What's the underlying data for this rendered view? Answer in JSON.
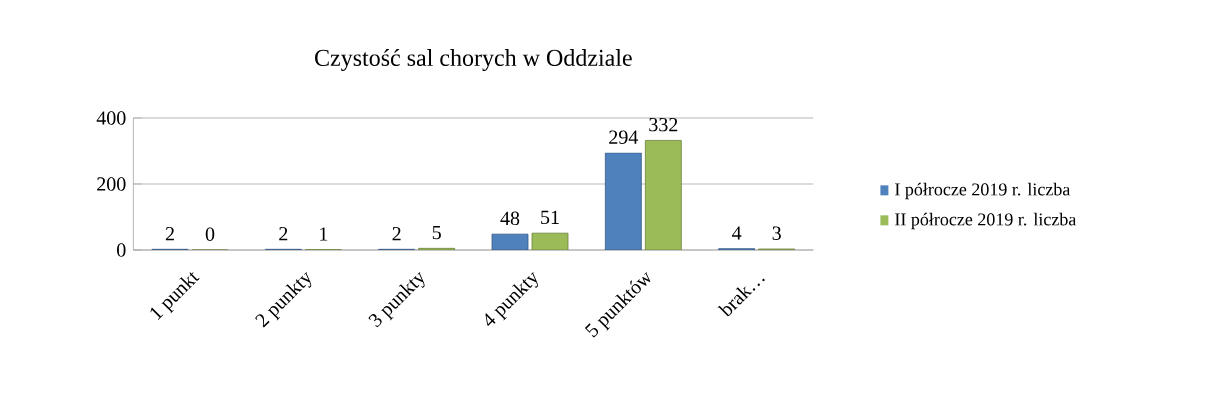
{
  "chart_data": {
    "type": "bar",
    "title": "Czystość sal chorych w Oddziale",
    "categories": [
      "1 punkt",
      "2 punkty",
      "3 punkty",
      "4 punkty",
      "5 punktów",
      "brak…"
    ],
    "series": [
      {
        "name": "I półrocze 2019 r. liczba",
        "color": "#4f81bd",
        "values": [
          2,
          2,
          2,
          48,
          294,
          4
        ]
      },
      {
        "name": "II półrocze 2019 r. liczba",
        "color": "#9bbb59",
        "values": [
          0,
          1,
          5,
          51,
          332,
          3
        ]
      }
    ],
    "ylim": [
      0,
      400
    ],
    "yticks": [
      0,
      200,
      400
    ],
    "grid": "y",
    "legend": "right",
    "data_labels": true
  }
}
